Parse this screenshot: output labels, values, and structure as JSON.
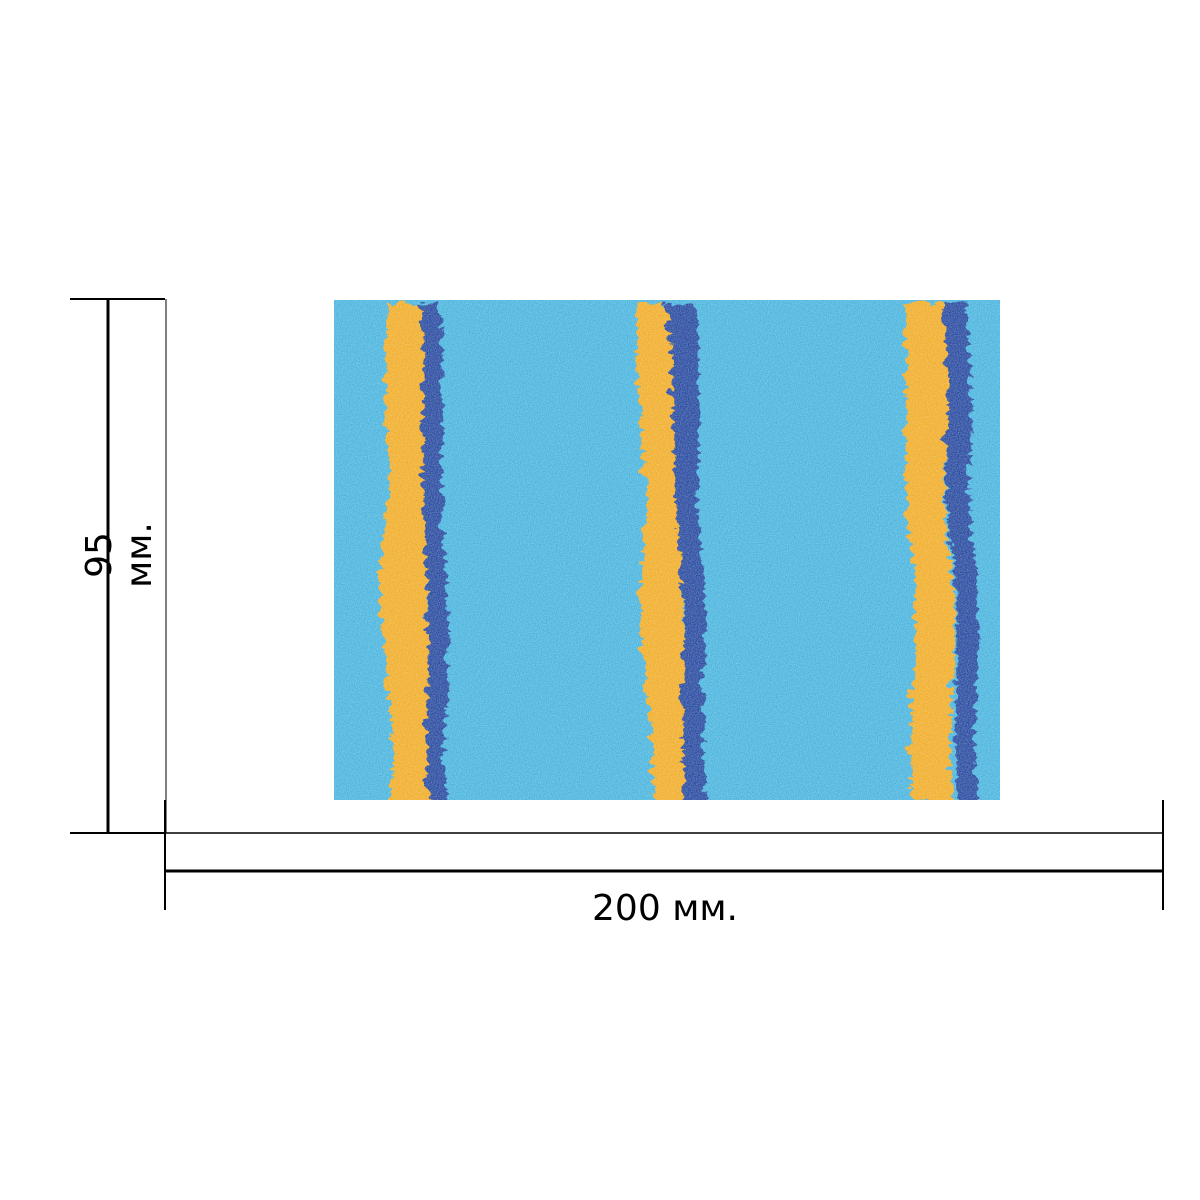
{
  "dimensions": {
    "width_label": "200 мм.",
    "height_label": "95 мм."
  },
  "swatch": {
    "base_color": "#3fb0dc",
    "stripe_yellow": "#f0a81e",
    "stripe_blue": "#1f3f9a",
    "stripe_count": 3
  }
}
